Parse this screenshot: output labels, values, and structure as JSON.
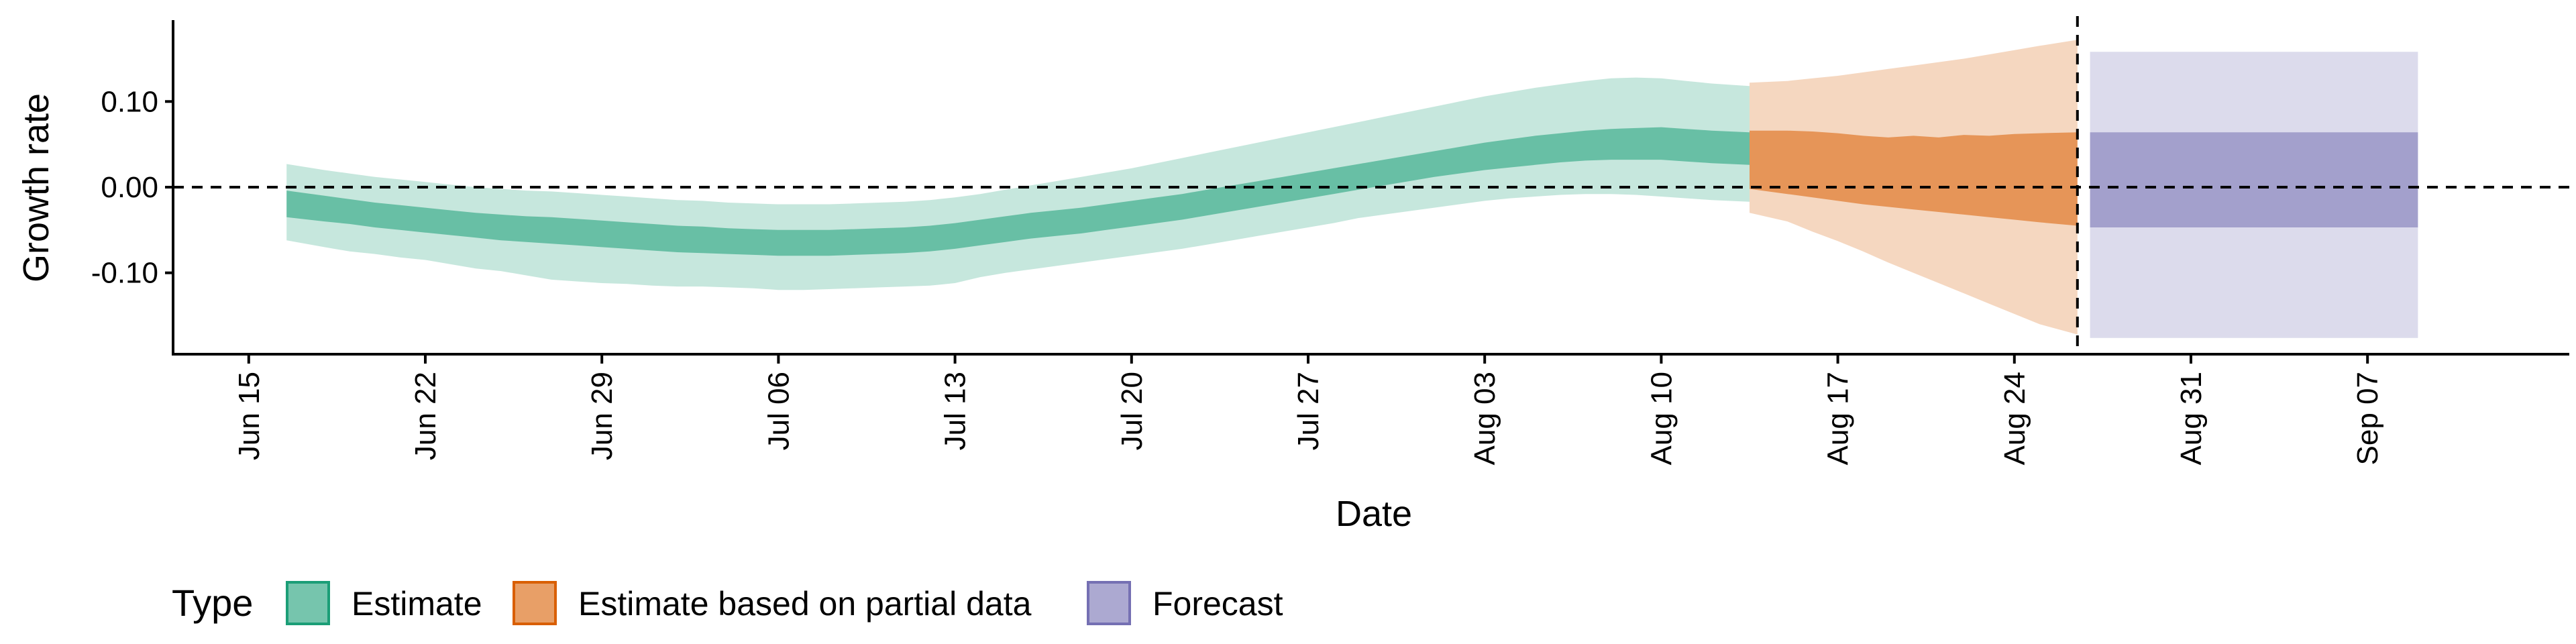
{
  "chart_data": {
    "type": "area",
    "xlabel": "Date",
    "ylabel": "Growth rate",
    "ylim": [
      -0.195,
      0.195
    ],
    "y_ticks": [
      {
        "value": 0.1,
        "label": "0.10"
      },
      {
        "value": 0.0,
        "label": "0.00"
      },
      {
        "value": -0.1,
        "label": "-0.10"
      }
    ],
    "xlim": [
      "2020-06-12",
      "2020-09-15"
    ],
    "x_ticks": [
      {
        "date": "2020-06-15",
        "label": "Jun 15"
      },
      {
        "date": "2020-06-22",
        "label": "Jun 22"
      },
      {
        "date": "2020-06-29",
        "label": "Jun 29"
      },
      {
        "date": "2020-07-06",
        "label": "Jul 06"
      },
      {
        "date": "2020-07-13",
        "label": "Jul 13"
      },
      {
        "date": "2020-07-20",
        "label": "Jul 20"
      },
      {
        "date": "2020-07-27",
        "label": "Jul 27"
      },
      {
        "date": "2020-08-03",
        "label": "Aug 03"
      },
      {
        "date": "2020-08-10",
        "label": "Aug 10"
      },
      {
        "date": "2020-08-17",
        "label": "Aug 17"
      },
      {
        "date": "2020-08-24",
        "label": "Aug 24"
      },
      {
        "date": "2020-08-31",
        "label": "Aug 31"
      },
      {
        "date": "2020-09-07",
        "label": "Sep 07"
      }
    ],
    "hline": 0,
    "vline": "2020-08-26",
    "legend": {
      "title": "Type",
      "position": "bottom-left",
      "items": [
        {
          "label": "Estimate",
          "color": "#1b9e77"
        },
        {
          "label": "Estimate based on partial data",
          "color": "#d95f02"
        },
        {
          "label": "Forecast",
          "color": "#7570b3"
        }
      ]
    },
    "series": [
      {
        "name": "Estimate",
        "color": "#1b9e77",
        "dates": [
          "2020-06-17",
          "2020-06-18",
          "2020-06-19",
          "2020-06-20",
          "2020-06-21",
          "2020-06-22",
          "2020-06-23",
          "2020-06-24",
          "2020-06-25",
          "2020-06-26",
          "2020-06-27",
          "2020-06-28",
          "2020-06-29",
          "2020-06-30",
          "2020-07-01",
          "2020-07-02",
          "2020-07-03",
          "2020-07-04",
          "2020-07-05",
          "2020-07-06",
          "2020-07-07",
          "2020-07-08",
          "2020-07-09",
          "2020-07-10",
          "2020-07-11",
          "2020-07-12",
          "2020-07-13",
          "2020-07-14",
          "2020-07-15",
          "2020-07-16",
          "2020-07-17",
          "2020-07-18",
          "2020-07-19",
          "2020-07-20",
          "2020-07-21",
          "2020-07-22",
          "2020-07-23",
          "2020-07-24",
          "2020-07-25",
          "2020-07-26",
          "2020-07-27",
          "2020-07-28",
          "2020-07-29",
          "2020-07-30",
          "2020-07-31",
          "2020-08-01",
          "2020-08-02",
          "2020-08-03",
          "2020-08-04",
          "2020-08-05",
          "2020-08-06",
          "2020-08-07",
          "2020-08-08",
          "2020-08-09",
          "2020-08-10",
          "2020-08-11",
          "2020-08-12",
          "2020-08-13"
        ],
        "lower_90": [
          -0.062,
          -0.07,
          -0.075,
          -0.078,
          -0.082,
          -0.085,
          -0.09,
          -0.095,
          -0.098,
          -0.103,
          -0.108,
          -0.11,
          -0.112,
          -0.113,
          -0.115,
          -0.116,
          -0.116,
          -0.117,
          -0.118,
          -0.12,
          -0.12,
          -0.119,
          -0.118,
          -0.117,
          -0.116,
          -0.115,
          -0.112,
          -0.105,
          -0.1,
          -0.096,
          -0.092,
          -0.088,
          -0.084,
          -0.08,
          -0.076,
          -0.072,
          -0.067,
          -0.062,
          -0.057,
          -0.052,
          -0.047,
          -0.042,
          -0.036,
          -0.032,
          -0.028,
          -0.024,
          -0.02,
          -0.016,
          -0.013,
          -0.011,
          -0.009,
          -0.008,
          -0.008,
          -0.009,
          -0.011,
          -0.013,
          -0.015,
          -0.017
        ],
        "lower_50": [
          -0.035,
          -0.04,
          -0.043,
          -0.047,
          -0.05,
          -0.053,
          -0.056,
          -0.059,
          -0.062,
          -0.064,
          -0.066,
          -0.068,
          -0.07,
          -0.072,
          -0.074,
          -0.076,
          -0.077,
          -0.078,
          -0.079,
          -0.08,
          -0.08,
          -0.08,
          -0.079,
          -0.078,
          -0.077,
          -0.075,
          -0.072,
          -0.068,
          -0.064,
          -0.06,
          -0.057,
          -0.054,
          -0.05,
          -0.046,
          -0.042,
          -0.038,
          -0.033,
          -0.028,
          -0.023,
          -0.018,
          -0.013,
          -0.008,
          -0.003,
          0.002,
          0.007,
          0.012,
          0.016,
          0.02,
          0.023,
          0.026,
          0.029,
          0.031,
          0.032,
          0.032,
          0.032,
          0.03,
          0.028,
          0.026
        ],
        "upper_50": [
          -0.004,
          -0.01,
          -0.014,
          -0.018,
          -0.021,
          -0.024,
          -0.027,
          -0.03,
          -0.032,
          -0.034,
          -0.035,
          -0.037,
          -0.039,
          -0.041,
          -0.043,
          -0.045,
          -0.046,
          -0.048,
          -0.049,
          -0.05,
          -0.05,
          -0.05,
          -0.049,
          -0.048,
          -0.047,
          -0.045,
          -0.042,
          -0.038,
          -0.034,
          -0.03,
          -0.027,
          -0.024,
          -0.02,
          -0.016,
          -0.012,
          -0.008,
          -0.003,
          0.002,
          0.007,
          0.012,
          0.017,
          0.022,
          0.027,
          0.032,
          0.037,
          0.042,
          0.047,
          0.052,
          0.056,
          0.06,
          0.063,
          0.066,
          0.068,
          0.069,
          0.07,
          0.068,
          0.066,
          0.064
        ],
        "upper_90": [
          0.027,
          0.02,
          0.016,
          0.012,
          0.009,
          0.006,
          0.003,
          0.0,
          -0.002,
          -0.004,
          -0.005,
          -0.007,
          -0.009,
          -0.011,
          -0.013,
          -0.015,
          -0.016,
          -0.018,
          -0.019,
          -0.02,
          -0.02,
          -0.02,
          -0.019,
          -0.018,
          -0.017,
          -0.015,
          -0.012,
          -0.008,
          -0.003,
          0.002,
          0.007,
          0.012,
          0.017,
          0.022,
          0.028,
          0.034,
          0.04,
          0.046,
          0.052,
          0.058,
          0.064,
          0.07,
          0.076,
          0.082,
          0.088,
          0.094,
          0.1,
          0.106,
          0.111,
          0.116,
          0.12,
          0.124,
          0.127,
          0.128,
          0.127,
          0.124,
          0.121,
          0.118
        ]
      },
      {
        "name": "Estimate based on partial data",
        "color": "#d95f02",
        "dates": [
          "2020-08-14",
          "2020-08-15",
          "2020-08-16",
          "2020-08-17",
          "2020-08-18",
          "2020-08-19",
          "2020-08-20",
          "2020-08-21",
          "2020-08-22",
          "2020-08-23",
          "2020-08-24",
          "2020-08-25",
          "2020-08-26"
        ],
        "lower_90": [
          -0.03,
          -0.04,
          -0.052,
          -0.063,
          -0.075,
          -0.088,
          -0.1,
          -0.112,
          -0.124,
          -0.136,
          -0.148,
          -0.16,
          -0.172
        ],
        "lower_50": [
          -0.002,
          -0.008,
          -0.012,
          -0.016,
          -0.02,
          -0.023,
          -0.026,
          -0.029,
          -0.032,
          -0.035,
          -0.038,
          -0.041,
          -0.045
        ],
        "upper_50": [
          0.066,
          0.066,
          0.065,
          0.063,
          0.06,
          0.058,
          0.06,
          0.058,
          0.061,
          0.06,
          0.062,
          0.063,
          0.064
        ],
        "upper_90": [
          0.122,
          0.124,
          0.127,
          0.13,
          0.134,
          0.138,
          0.142,
          0.146,
          0.15,
          0.155,
          0.16,
          0.165,
          0.172
        ]
      },
      {
        "name": "Forecast",
        "color": "#7570b3",
        "dates": [
          "2020-08-27",
          "2020-09-09"
        ],
        "lower_90": [
          -0.176,
          -0.176
        ],
        "lower_50": [
          -0.047,
          -0.047
        ],
        "upper_50": [
          0.064,
          0.064
        ],
        "upper_90": [
          0.158,
          0.158
        ]
      }
    ]
  }
}
